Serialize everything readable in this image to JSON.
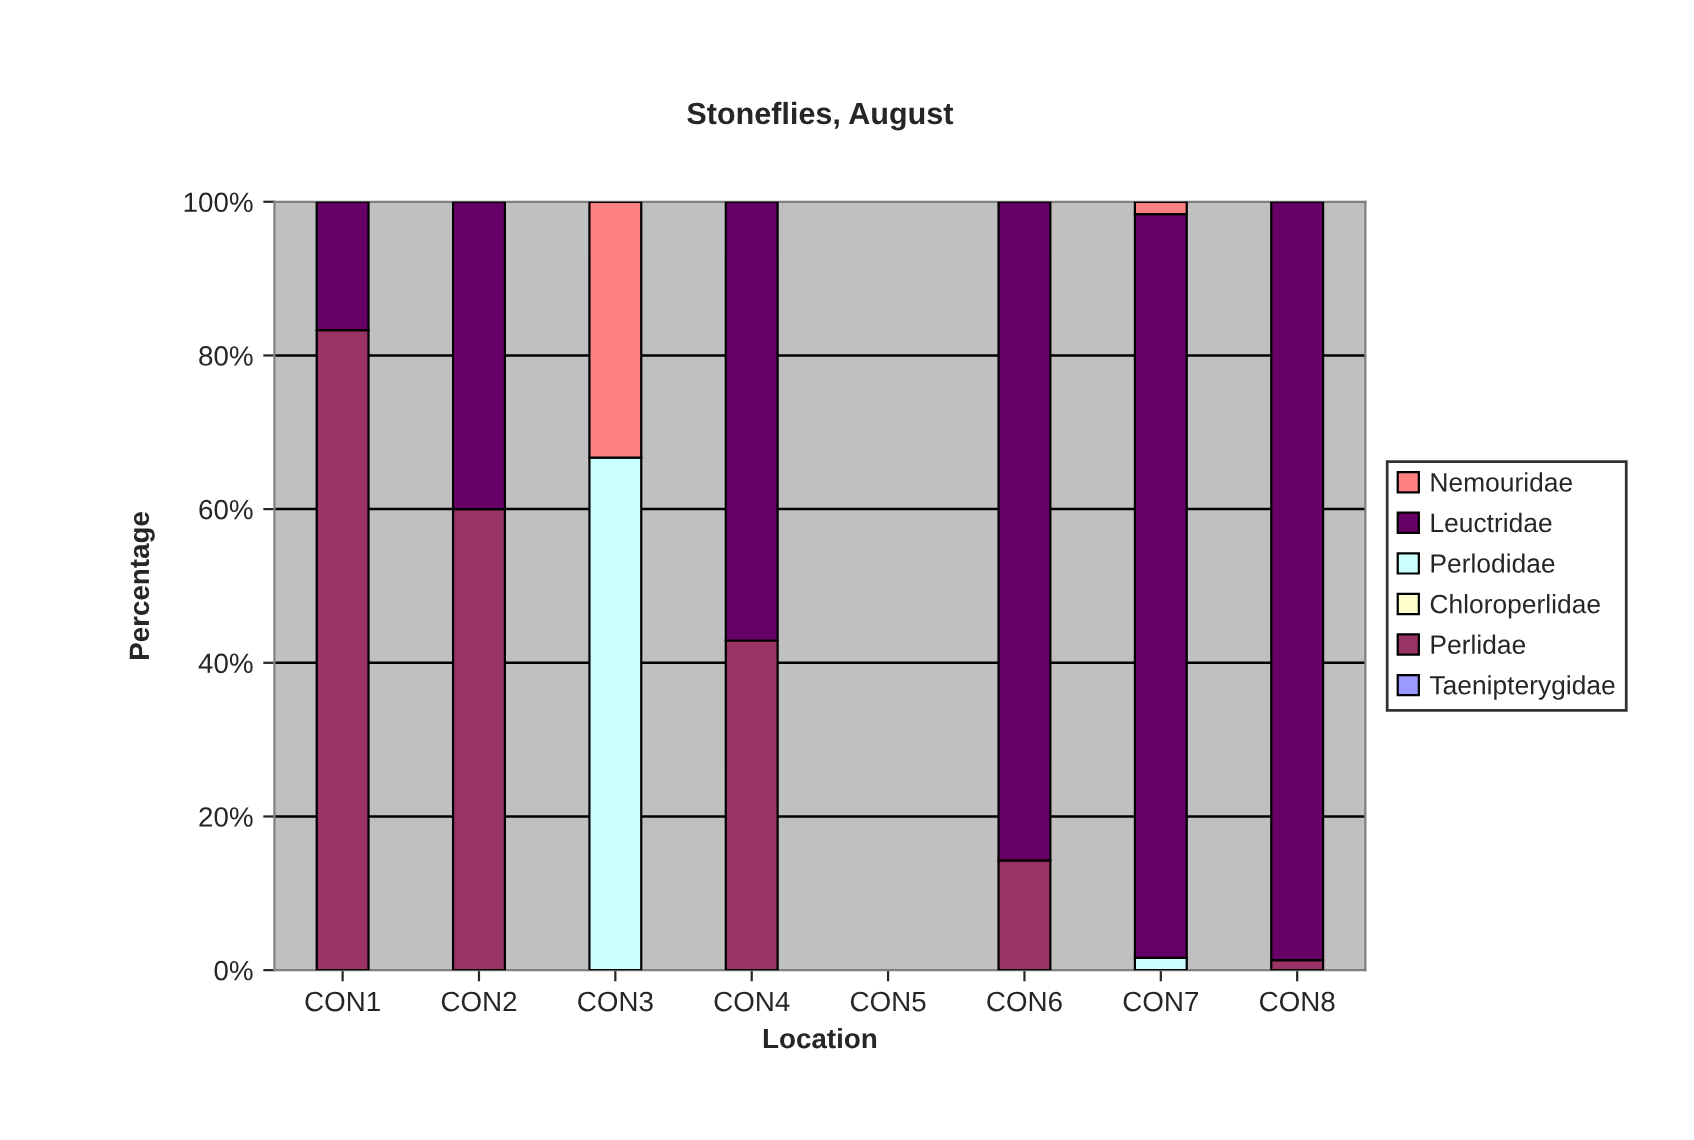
{
  "chart_data": {
    "type": "bar",
    "title": "Stoneflies, August",
    "xlabel": "Location",
    "ylabel": "Percentage",
    "categories": [
      "CON1",
      "CON2",
      "CON3",
      "CON4",
      "CON5",
      "CON6",
      "CON7",
      "CON8"
    ],
    "stacked": true,
    "legend": "right",
    "grid": "y",
    "ylim": [
      0,
      100
    ],
    "yticks": [
      {
        "value": 0,
        "label": "0%"
      },
      {
        "value": 20,
        "label": "20%"
      },
      {
        "value": 40,
        "label": "40%"
      },
      {
        "value": 60,
        "label": "60%"
      },
      {
        "value": 80,
        "label": "80%"
      },
      {
        "value": 100,
        "label": "100%"
      }
    ],
    "series": [
      {
        "name": "Taenipterygidae",
        "color": "#9999ff",
        "values": [
          0,
          0,
          0,
          0,
          0,
          0,
          0,
          0
        ]
      },
      {
        "name": "Perlidae",
        "color": "#993366",
        "values": [
          83.3,
          60,
          0,
          42.9,
          0,
          14.3,
          0,
          1.3
        ]
      },
      {
        "name": "Chloroperlidae",
        "color": "#ffffcc",
        "values": [
          0,
          0,
          0,
          0,
          0,
          0,
          0,
          0
        ]
      },
      {
        "name": "Perlodidae",
        "color": "#ccffff",
        "values": [
          0,
          0,
          66.7,
          0,
          0,
          0,
          1.6,
          0
        ]
      },
      {
        "name": "Leuctridae",
        "color": "#660066",
        "values": [
          16.7,
          40,
          0,
          57.1,
          0,
          85.7,
          96.8,
          98.7
        ]
      },
      {
        "name": "Nemouridae",
        "color": "#ff8080",
        "values": [
          0,
          0,
          33.3,
          0,
          0,
          0,
          1.6,
          0
        ]
      }
    ]
  }
}
